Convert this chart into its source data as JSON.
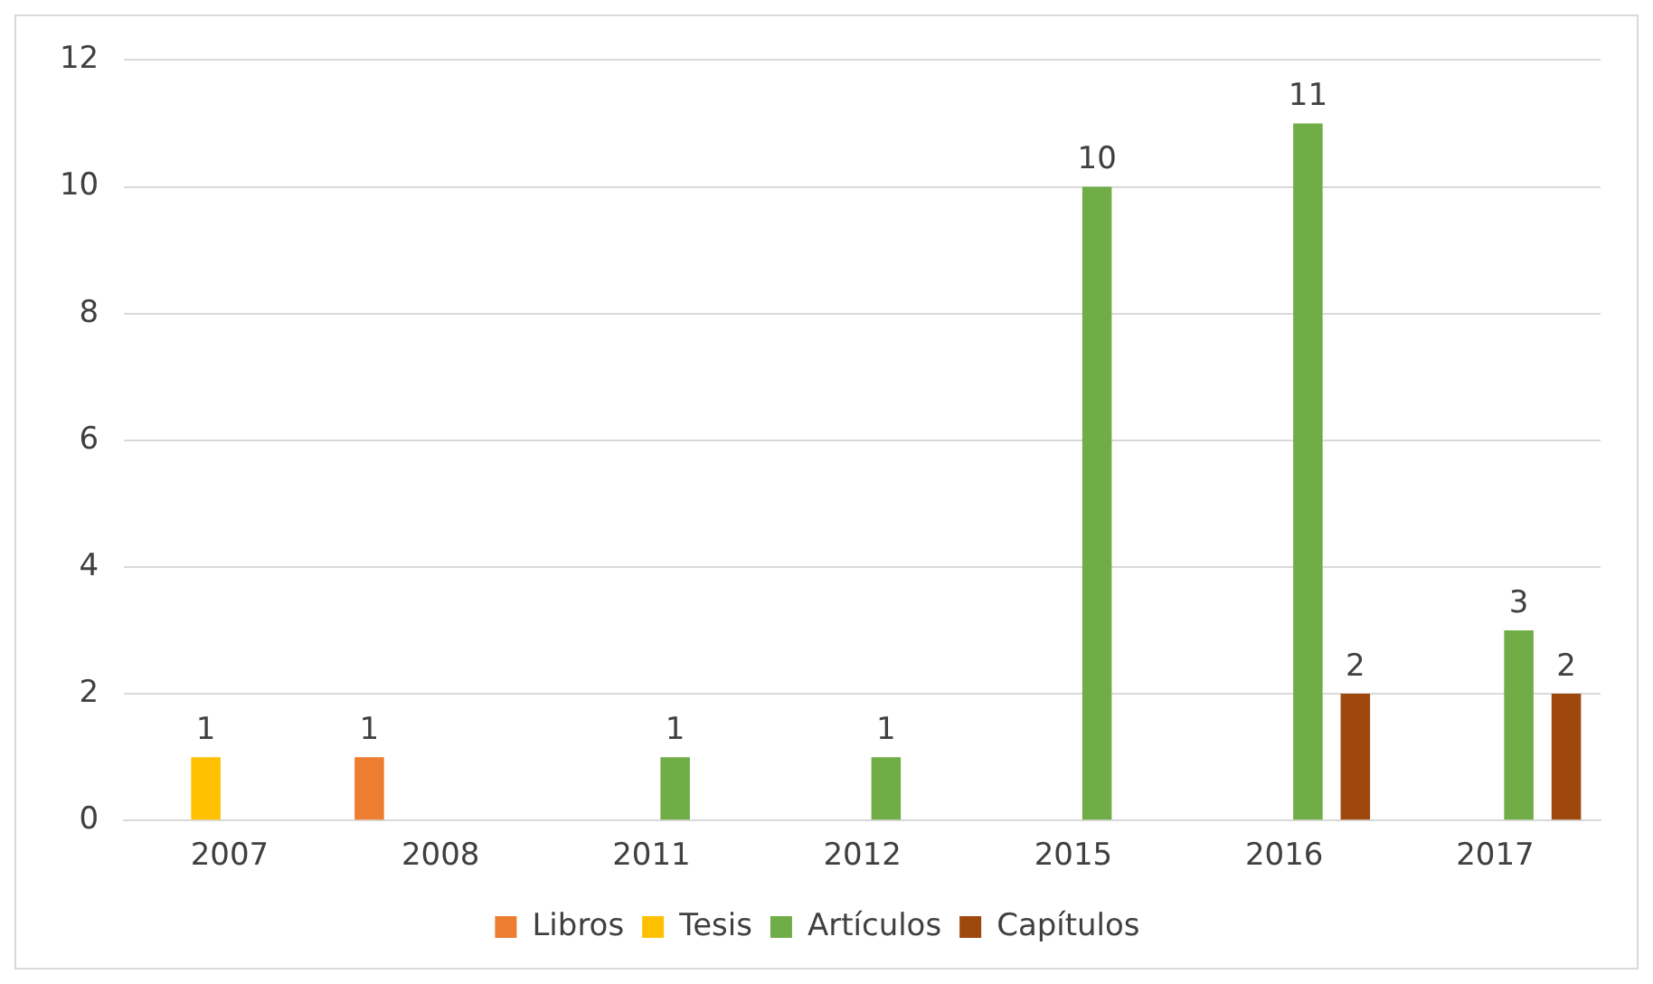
{
  "chart_data": {
    "type": "bar",
    "categories": [
      "2007",
      "2008",
      "2011",
      "2012",
      "2015",
      "2016",
      "2017"
    ],
    "series": [
      {
        "name": "Libros",
        "color": "#ed7d31",
        "values": [
          null,
          1,
          null,
          null,
          null,
          null,
          null
        ]
      },
      {
        "name": "Tesis",
        "color": "#ffc000",
        "values": [
          1,
          null,
          null,
          null,
          null,
          null,
          null
        ]
      },
      {
        "name": "Artículos",
        "color": "#70ad47",
        "values": [
          null,
          null,
          1,
          1,
          10,
          11,
          3
        ]
      },
      {
        "name": "Capítulos",
        "color": "#9e480e",
        "values": [
          null,
          null,
          null,
          null,
          null,
          2,
          2
        ]
      }
    ],
    "ylim": [
      0,
      12
    ],
    "yticks": [
      0,
      2,
      4,
      6,
      8,
      10,
      12
    ],
    "grid": "y",
    "legend": "bottom",
    "data_labels": true
  }
}
